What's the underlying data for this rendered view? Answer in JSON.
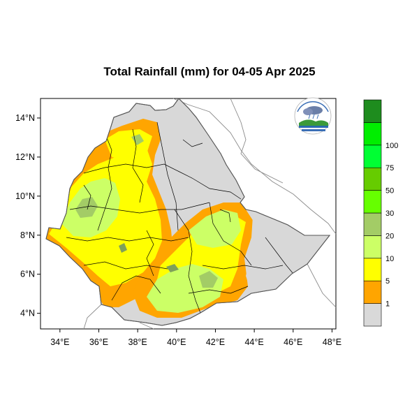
{
  "title": "Total Rainfall (mm) for 04-05 Apr 2025",
  "map": {
    "lon_range": [
      33.0,
      48.2
    ],
    "lat_range": [
      3.2,
      15.0
    ],
    "x_ticks": [
      "34°E",
      "36°E",
      "38°E",
      "40°E",
      "42°E",
      "44°E",
      "46°E",
      "48°E"
    ],
    "y_ticks": [
      "4°N",
      "6°N",
      "8°N",
      "10°N",
      "12°N",
      "14°N"
    ]
  },
  "legend": {
    "labels": [
      "1",
      "5",
      "10",
      "20",
      "30",
      "50",
      "75",
      "100"
    ],
    "colors": [
      "#d9d9d9",
      "#ffa500",
      "#ffff00",
      "#ccff66",
      "#a3cc66",
      "#66ff00",
      "#66cc00",
      "#00ff33",
      "#00ee00",
      "#1e8c1e"
    ]
  },
  "colors": {
    "land_no_rain": "#d8d8d8",
    "border": "#000000"
  },
  "logo": {
    "icon": "meteorology-agency-logo-icon"
  }
}
